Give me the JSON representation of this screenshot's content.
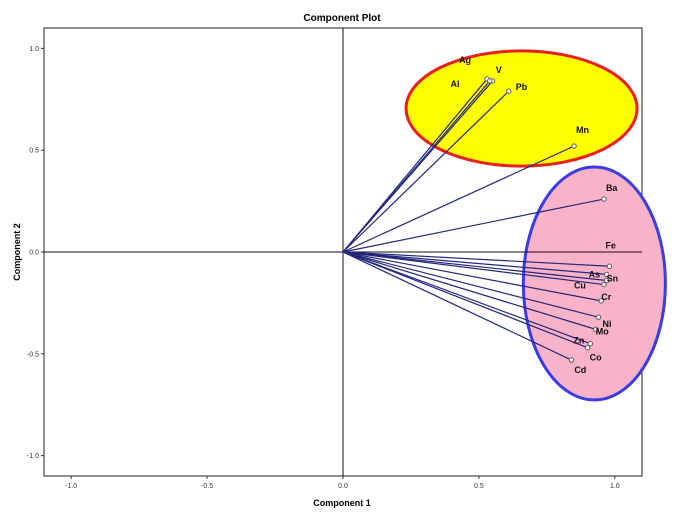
{
  "chart_data": {
    "type": "scatter",
    "title": "Component Plot",
    "xlabel": "Component 1",
    "ylabel": "Component 2",
    "xlim": [
      -1.1,
      1.1
    ],
    "ylim": [
      -1.1,
      1.1
    ],
    "xticks": [
      -1.0,
      -0.5,
      0.0,
      0.5,
      1.0
    ],
    "yticks": [
      -1.0,
      -0.5,
      0.0,
      0.5,
      1.0
    ],
    "tick_labels_x": [
      "-1.0",
      "-0.5",
      "0.0",
      "0.5",
      "1.0"
    ],
    "tick_labels_y": [
      "1.0",
      "0.5",
      "0.0",
      "-0.5",
      "-1.0"
    ],
    "grid": false,
    "reference_lines": [
      0,
      0
    ],
    "points": [
      {
        "label": "Ag",
        "x": 0.53,
        "y": 0.85
      },
      {
        "label": "Al",
        "x": 0.55,
        "y": 0.84
      },
      {
        "label": "V",
        "x": 0.54,
        "y": 0.84
      },
      {
        "label": "Pb",
        "x": 0.61,
        "y": 0.79
      },
      {
        "label": "Mn",
        "x": 0.85,
        "y": 0.52
      },
      {
        "label": "Ba",
        "x": 0.96,
        "y": 0.26
      },
      {
        "label": "Fe",
        "x": 0.98,
        "y": -0.07
      },
      {
        "label": "As",
        "x": 0.97,
        "y": -0.11
      },
      {
        "label": "Sn",
        "x": 0.97,
        "y": -0.14
      },
      {
        "label": "Cu",
        "x": 0.96,
        "y": -0.16
      },
      {
        "label": "Cr",
        "x": 0.95,
        "y": -0.24
      },
      {
        "label": "Ni",
        "x": 0.94,
        "y": -0.32
      },
      {
        "label": "Mo",
        "x": 0.93,
        "y": -0.38
      },
      {
        "label": "Zn",
        "x": 0.91,
        "y": -0.45
      },
      {
        "label": "Co",
        "x": 0.9,
        "y": -0.47
      },
      {
        "label": "Cd",
        "x": 0.84,
        "y": -0.53
      }
    ],
    "highlight_groups": [
      {
        "members": [
          "Ag",
          "Al",
          "V",
          "Pb",
          "Mn"
        ],
        "fill": "#ffff00",
        "stroke": "#e8201c"
      },
      {
        "members": [
          "Ba",
          "Fe",
          "As",
          "Sn",
          "Cu",
          "Cr",
          "Ni",
          "Mo",
          "Zn",
          "Co",
          "Cd"
        ],
        "fill": "#f9b3c9",
        "stroke": "#3a3ee0"
      }
    ],
    "colors": {
      "vector": "#24297a",
      "point": "#5a5a5a"
    }
  }
}
